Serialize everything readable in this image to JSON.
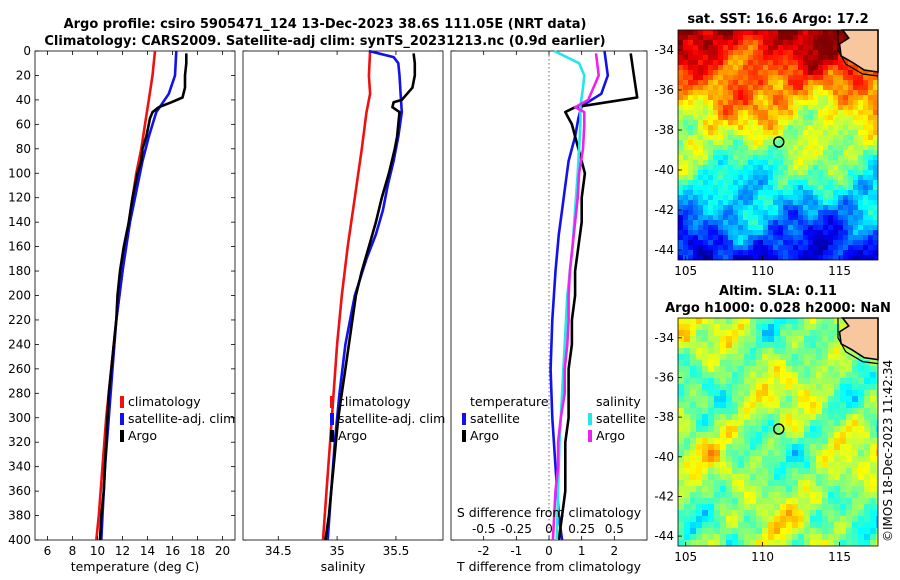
{
  "header": {
    "title_line1": "Argo profile: csiro 5905471_124 13-Dec-2023 38.6S 111.05E (NRT data)",
    "title_line2": "Climatology: CARS2009. Satellite-adj clim: synTS_20231213.nc (0.9d earlier)"
  },
  "colors": {
    "climatology": "#ee1111",
    "satellite": "#1111ee",
    "argo": "#000000",
    "sat_salinity": "#22e8e8",
    "argo_salinity": "#ee22ee"
  },
  "chart_data": [
    {
      "type": "line",
      "panel": "temperature",
      "xlabel": "temperature (deg C)",
      "ylabel": "",
      "xlim": [
        5,
        21
      ],
      "ylim": [
        400,
        0
      ],
      "xticks": [
        "6",
        "8",
        "10",
        "12",
        "14",
        "16",
        "18",
        "20"
      ],
      "xtick_values": [
        6,
        8,
        10,
        12,
        14,
        16,
        18,
        20
      ],
      "yticks": [
        "0",
        "20",
        "40",
        "60",
        "80",
        "100",
        "120",
        "140",
        "160",
        "180",
        "200",
        "220",
        "240",
        "260",
        "280",
        "300",
        "320",
        "340",
        "360",
        "380",
        "400"
      ],
      "ytick_values": [
        0,
        20,
        40,
        60,
        80,
        100,
        120,
        140,
        160,
        180,
        200,
        220,
        240,
        260,
        280,
        300,
        320,
        340,
        360,
        380,
        400
      ],
      "legend": [
        "climatology",
        "satellite-adj. clim",
        "Argo"
      ],
      "legend_position": "bottom-right",
      "series": [
        {
          "name": "climatology",
          "color": "#ee1111",
          "depth": [
            0,
            20,
            40,
            60,
            80,
            100,
            140,
            180,
            220,
            260,
            300,
            340,
            380,
            400
          ],
          "values": [
            14.6,
            14.4,
            14.1,
            13.8,
            13.5,
            13.1,
            12.5,
            12.0,
            11.5,
            11.1,
            10.7,
            10.4,
            10.1,
            9.9
          ]
        },
        {
          "name": "satellite-adj. clim",
          "color": "#1111ee",
          "depth": [
            0,
            20,
            35,
            50,
            70,
            90,
            110,
            140,
            180,
            220,
            260,
            300,
            340,
            380,
            400
          ],
          "values": [
            16.3,
            16.2,
            15.7,
            14.7,
            14.1,
            13.6,
            13.2,
            12.6,
            12.0,
            11.5,
            11.2,
            10.9,
            10.6,
            10.4,
            10.3
          ]
        },
        {
          "name": "Argo",
          "color": "#000000",
          "depth": [
            2,
            10,
            20,
            30,
            38,
            42,
            46,
            50,
            55,
            60,
            70,
            80,
            90,
            100,
            120,
            140,
            160,
            180,
            200,
            220,
            240,
            260,
            280,
            300,
            320,
            340,
            360,
            380,
            400
          ],
          "values": [
            17.1,
            17.1,
            17.0,
            17.0,
            16.8,
            15.9,
            14.9,
            14.4,
            14.2,
            14.1,
            13.9,
            13.6,
            13.5,
            13.2,
            12.8,
            12.5,
            12.1,
            11.8,
            11.6,
            11.5,
            11.3,
            11.1,
            10.9,
            10.8,
            10.7,
            10.6,
            10.5,
            10.3,
            10.2
          ]
        }
      ]
    },
    {
      "type": "line",
      "panel": "salinity",
      "xlabel": "salinity",
      "xlim": [
        34.2,
        35.9
      ],
      "ylim": [
        400,
        0
      ],
      "xticks": [
        "34.5",
        "35",
        "35.5"
      ],
      "xtick_values": [
        34.5,
        35,
        35.5
      ],
      "legend": [
        "climatology",
        "satellite-adj. clim",
        "Argo"
      ],
      "legend_position": "bottom-right",
      "series": [
        {
          "name": "climatology",
          "color": "#ee1111",
          "depth": [
            0,
            20,
            35,
            50,
            80,
            120,
            160,
            200,
            240,
            280,
            320,
            360,
            400
          ],
          "values": [
            35.28,
            35.27,
            35.28,
            35.25,
            35.21,
            35.15,
            35.09,
            35.04,
            35.0,
            34.97,
            34.94,
            34.91,
            34.88
          ]
        },
        {
          "name": "satellite-adj. clim",
          "color": "#1111ee",
          "depth": [
            0,
            5,
            10,
            20,
            35,
            50,
            70,
            90,
            110,
            130,
            150,
            170,
            200,
            240,
            280,
            320,
            360,
            400
          ],
          "values": [
            35.27,
            35.48,
            35.52,
            35.53,
            35.54,
            35.55,
            35.52,
            35.48,
            35.43,
            35.39,
            35.33,
            35.25,
            35.15,
            35.07,
            35.02,
            34.98,
            34.95,
            34.92
          ]
        },
        {
          "name": "Argo",
          "color": "#000000",
          "depth": [
            2,
            10,
            20,
            30,
            40,
            42,
            46,
            50,
            60,
            70,
            80,
            100,
            120,
            140,
            160,
            180,
            200,
            220,
            240,
            260,
            280,
            300,
            320,
            340,
            360,
            380,
            400
          ],
          "values": [
            35.65,
            35.66,
            35.66,
            35.64,
            35.55,
            35.48,
            35.47,
            35.53,
            35.52,
            35.51,
            35.49,
            35.44,
            35.38,
            35.33,
            35.27,
            35.21,
            35.16,
            35.13,
            35.1,
            35.07,
            35.04,
            35.01,
            34.99,
            34.97,
            34.95,
            34.93,
            34.9
          ]
        }
      ]
    },
    {
      "type": "line",
      "panel": "difference",
      "xlabel": "T difference from climatology",
      "xlabel_top": "S difference from climatology",
      "xlim": [
        -3,
        3
      ],
      "ylim": [
        400,
        0
      ],
      "xticks": [
        "-2",
        "-1",
        "0",
        "1",
        "2"
      ],
      "xtick_values": [
        -2,
        -1,
        0,
        1,
        2
      ],
      "xticks_top": [
        "-0.5",
        "-0.25",
        "0",
        "0.25",
        "0.5"
      ],
      "xtick_top_values": [
        -0.5,
        -0.25,
        0,
        0.25,
        0.5
      ],
      "legend_temperature": {
        "title": "temperature",
        "items": [
          "satellite",
          "Argo"
        ]
      },
      "legend_salinity": {
        "title": "salinity",
        "items": [
          "satellite",
          "Argo"
        ]
      },
      "series": [
        {
          "name": "T satellite",
          "color": "#1111ee",
          "depth": [
            0,
            20,
            35,
            45,
            55,
            70,
            90,
            110,
            130,
            150,
            180,
            220,
            260,
            300,
            340,
            380,
            400
          ],
          "values": [
            1.7,
            1.8,
            1.6,
            1.0,
            0.9,
            0.8,
            0.6,
            0.5,
            0.4,
            0.3,
            0.2,
            0.1,
            0.05,
            0.1,
            0.2,
            0.3,
            0.4
          ]
        },
        {
          "name": "T Argo",
          "color": "#000000",
          "depth": [
            2,
            20,
            38,
            46,
            50,
            55,
            60,
            80,
            100,
            120,
            140,
            160,
            180,
            200,
            220,
            240,
            260,
            280,
            300,
            320,
            340,
            360,
            380,
            400
          ],
          "values": [
            2.5,
            2.6,
            2.7,
            0.8,
            0.5,
            0.6,
            0.7,
            0.9,
            1.1,
            1.0,
            1.0,
            0.9,
            0.8,
            0.8,
            0.7,
            0.7,
            0.6,
            0.6,
            0.6,
            0.5,
            0.5,
            0.5,
            0.4,
            0.3
          ]
        },
        {
          "name": "S satellite",
          "color": "#22e8e8",
          "depth": [
            0,
            10,
            20,
            30,
            45,
            60,
            80,
            100,
            130,
            160,
            200,
            240,
            280,
            320,
            360,
            400
          ],
          "values": [
            0.04,
            0.23,
            0.27,
            0.26,
            0.24,
            0.24,
            0.23,
            0.22,
            0.2,
            0.18,
            0.14,
            0.12,
            0.1,
            0.08,
            0.07,
            0.06
          ]
        },
        {
          "name": "S Argo",
          "color": "#ee22ee",
          "depth": [
            2,
            20,
            40,
            46,
            50,
            60,
            80,
            100,
            120,
            140,
            160,
            180,
            200,
            220,
            240,
            260,
            280,
            300,
            320,
            340,
            360,
            380,
            400
          ],
          "values": [
            0.36,
            0.38,
            0.3,
            0.2,
            0.27,
            0.27,
            0.26,
            0.23,
            0.22,
            0.2,
            0.18,
            0.16,
            0.15,
            0.15,
            0.14,
            0.12,
            0.12,
            0.09,
            0.07,
            0.07,
            0.05,
            0.04,
            0.03
          ]
        }
      ]
    },
    {
      "type": "heatmap",
      "panel": "sst_map",
      "title": "sat. SST: 16.6 Argo: 17.2",
      "xlim": [
        104.5,
        117.5
      ],
      "ylim": [
        -44.5,
        -33
      ],
      "xticks": [
        "105",
        "110",
        "115"
      ],
      "xtick_values": [
        105,
        110,
        115
      ],
      "yticks": [
        "-34",
        "-36",
        "-38",
        "-40",
        "-42",
        "-44"
      ],
      "ytick_values": [
        -34,
        -36,
        -38,
        -40,
        -42,
        -44
      ],
      "argo_position": {
        "lon": 111.05,
        "lat": -38.6
      },
      "sat_sst": 16.6,
      "argo_sst": 17.2
    },
    {
      "type": "heatmap",
      "panel": "sla_map",
      "title_line1": "Altim. SLA: 0.11",
      "title_line2": "Argo h1000: 0.028 h2000: NaN",
      "xlim": [
        104.5,
        117.5
      ],
      "ylim": [
        -44.5,
        -33
      ],
      "xticks": [
        "105",
        "110",
        "115"
      ],
      "xtick_values": [
        105,
        110,
        115
      ],
      "yticks": [
        "-34",
        "-36",
        "-38",
        "-40",
        "-42",
        "-44"
      ],
      "ytick_values": [
        -34,
        -36,
        -38,
        -40,
        -42,
        -44
      ],
      "argo_position": {
        "lon": 111.05,
        "lat": -38.6
      },
      "sla": 0.11,
      "h1000": 0.028,
      "h2000": "NaN"
    }
  ],
  "footer": {
    "stamp": "©IMOS 18-Dec-2023 11:42:34"
  }
}
